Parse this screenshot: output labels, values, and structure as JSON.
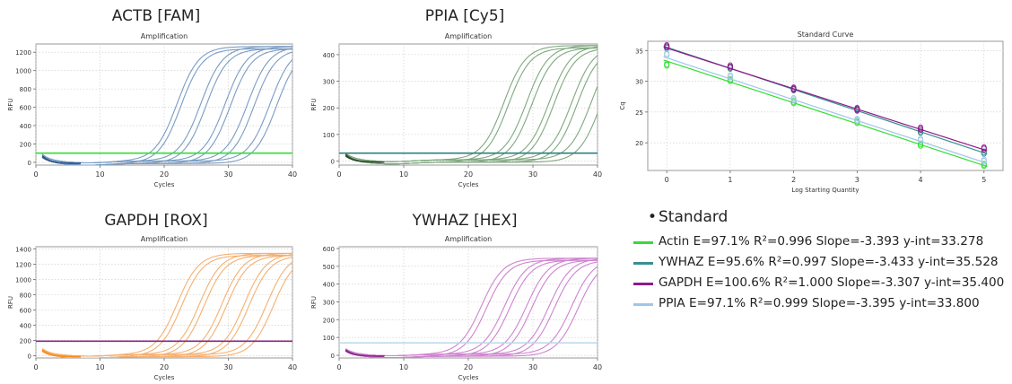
{
  "chart_data": [
    {
      "id": "actb",
      "type": "line",
      "heading": "ACTB [FAM]",
      "title": "Amplification",
      "xlabel": "Cycles",
      "ylabel": "RFU",
      "xlim": [
        0,
        40
      ],
      "ylim": [
        -30,
        1290
      ],
      "xticks": [
        0,
        10,
        20,
        30,
        40
      ],
      "yticks": [
        0,
        200,
        400,
        600,
        800,
        1000,
        1200
      ],
      "curve_color": "#7a9cc4",
      "threshold": 100,
      "threshold_color": "#33dd33",
      "plateau": 1250,
      "midpoints": [
        22,
        22.6,
        25.7,
        26.5,
        29.5,
        30.3,
        33,
        34,
        36.5,
        37.5
      ]
    },
    {
      "id": "ppia",
      "type": "line",
      "heading": "PPIA [Cy5]",
      "title": "Amplification",
      "xlabel": "Cycles",
      "ylabel": "RFU",
      "xlim": [
        0,
        40
      ],
      "ylim": [
        -15,
        440
      ],
      "xticks": [
        0,
        10,
        20,
        30,
        40
      ],
      "yticks": [
        0,
        100,
        200,
        300,
        400
      ],
      "curve_color": "#7fa87f",
      "threshold": 30,
      "threshold_color": "#2f7f7f",
      "plateau": 430,
      "midpoints": [
        25.5,
        26.2,
        29,
        29.8,
        32.5,
        33.2,
        36,
        36.8,
        39,
        40.5
      ]
    },
    {
      "id": "gapdh",
      "type": "line",
      "heading": "GAPDH [ROX]",
      "title": "Amplification",
      "xlabel": "Cycles",
      "ylabel": "RFU",
      "xlim": [
        0,
        40
      ],
      "ylim": [
        -30,
        1430
      ],
      "xticks": [
        0,
        10,
        20,
        30,
        40
      ],
      "yticks": [
        0,
        200,
        400,
        600,
        800,
        1000,
        1200,
        1400
      ],
      "curve_color": "#f5b070",
      "threshold": 190,
      "threshold_color": "#8b2a8b",
      "plateau": 1330,
      "midpoints": [
        22,
        22.7,
        25.5,
        26.2,
        29,
        29.7,
        32.5,
        33.2,
        36,
        37
      ]
    },
    {
      "id": "ywhaz",
      "type": "line",
      "heading": "YWHAZ [HEX]",
      "title": "Amplification",
      "xlabel": "Cycles",
      "ylabel": "RFU",
      "xlim": [
        0,
        40
      ],
      "ylim": [
        -15,
        610
      ],
      "xticks": [
        0,
        10,
        20,
        30,
        40
      ],
      "yticks": [
        0,
        100,
        200,
        300,
        400,
        500,
        600
      ],
      "curve_color": "#cf83cf",
      "threshold": 70,
      "threshold_color": "#b8d8ee",
      "plateau": 540,
      "midpoints": [
        22,
        22.8,
        25.6,
        26.4,
        29,
        29.8,
        32.5,
        33.3,
        36,
        37
      ]
    },
    {
      "id": "standard",
      "type": "scatter",
      "title": "Standard Curve",
      "xlabel": "Log Starting Quantity",
      "ylabel": "Cq",
      "xlim": [
        -0.3,
        5.3
      ],
      "ylim": [
        15.5,
        36.5
      ],
      "xticks": [
        0,
        1,
        2,
        3,
        4,
        5
      ],
      "yticks": [
        20,
        25,
        30,
        35
      ],
      "x": [
        0,
        1,
        2,
        3,
        4,
        5
      ],
      "series": [
        {
          "name": "Actin",
          "slope": -3.393,
          "intercept": 33.278,
          "color": "#33dd33",
          "values": [
            32.6,
            30.1,
            26.5,
            23.3,
            19.6,
            16.3
          ]
        },
        {
          "name": "YWHAZ",
          "slope": -3.433,
          "intercept": 35.528,
          "color": "#3a8f8f",
          "values": [
            35.4,
            32.1,
            28.6,
            25.4,
            21.7,
            18.3
          ]
        },
        {
          "name": "GAPDH",
          "slope": -3.307,
          "intercept": 35.4,
          "color": "#8b1a8b",
          "values": [
            35.6,
            32.3,
            28.7,
            25.3,
            22.2,
            19.0
          ]
        },
        {
          "name": "PPIA",
          "slope": -3.395,
          "intercept": 33.8,
          "color": "#9fc6e8",
          "values": [
            34.3,
            30.7,
            27.0,
            23.6,
            20.4,
            17.0
          ]
        }
      ]
    }
  ],
  "legend": {
    "title": "Standard",
    "items": [
      {
        "name": "Actin",
        "text": "Actin E=97.1% R²=0.996 Slope=-3.393 y-int=33.278",
        "color": "#33dd33"
      },
      {
        "name": "YWHAZ",
        "text": "YWHAZ E=95.6% R²=0.997 Slope=-3.433 y-int=35.528",
        "color": "#3a8f8f"
      },
      {
        "name": "GAPDH",
        "text": "GAPDH E=100.6% R²=1.000 Slope=-3.307 y-int=35.400",
        "color": "#8b1a8b"
      },
      {
        "name": "PPIA",
        "text": "PPIA E=97.1% R²=0.999 Slope=-3.395 y-int=33.800",
        "color": "#9fc6e8"
      }
    ]
  }
}
